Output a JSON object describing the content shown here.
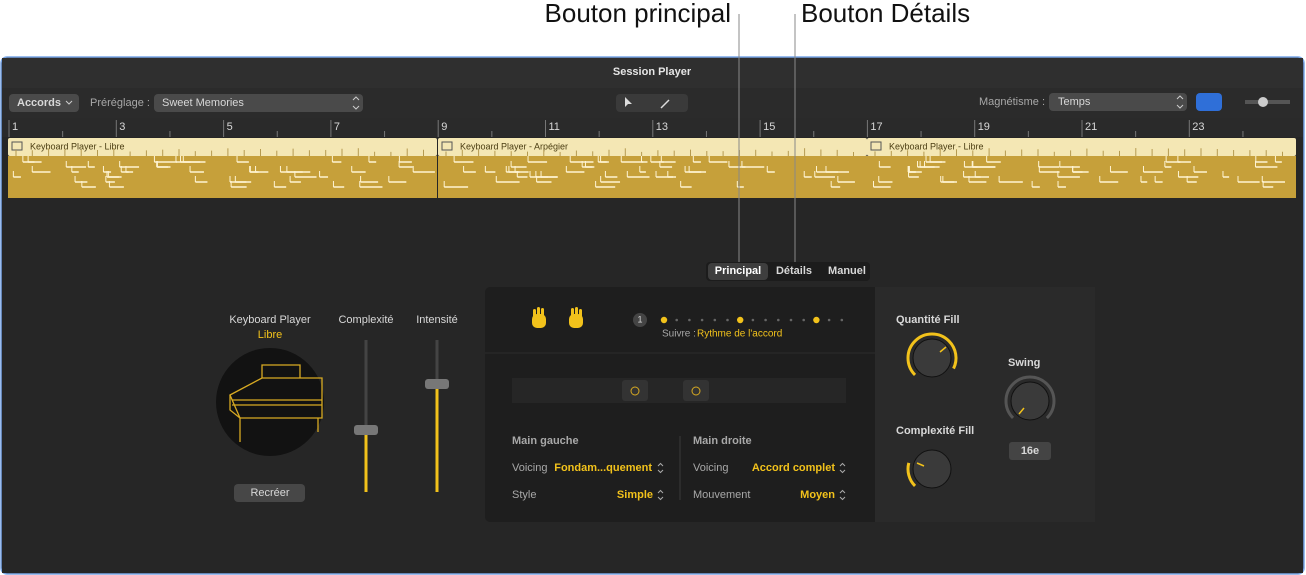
{
  "callouts": [
    "Bouton principal",
    "Bouton Détails"
  ],
  "window": {
    "title": "Session Player"
  },
  "toolbar": {
    "track_type": "Accords",
    "preset_label": "Préréglage :",
    "preset": "Sweet Memories",
    "snap_label": "Magnétisme :",
    "snap": "Temps"
  },
  "ruler": [
    1,
    3,
    5,
    7,
    9,
    11,
    13,
    15,
    17,
    19,
    21,
    23
  ],
  "regions": [
    "Keyboard Player - Libre",
    "Keyboard Player - Arpégier",
    "Keyboard Player - Libre"
  ],
  "tabs": [
    "Principal",
    "Détails",
    "Manuel"
  ],
  "player": {
    "label": "Keyboard Player",
    "style": "Libre",
    "recreate": "Recréer"
  },
  "sliders": [
    "Complexité",
    "Intensité"
  ],
  "pattern": {
    "bar": "1",
    "follow_label": "Suivre :",
    "follow": "Rythme de l'accord"
  },
  "left_hand": {
    "title": "Main gauche",
    "voicing_label": "Voicing",
    "voicing": "Fondam...quement",
    "style_label": "Style",
    "style": "Simple"
  },
  "right_hand": {
    "title": "Main droite",
    "voicing_label": "Voicing",
    "voicing": "Accord complet",
    "movement_label": "Mouvement",
    "movement": "Moyen"
  },
  "fill": {
    "amount_label": "Quantité Fill",
    "complexity_label": "Complexité Fill",
    "swing_label": "Swing",
    "swing": "16e"
  }
}
